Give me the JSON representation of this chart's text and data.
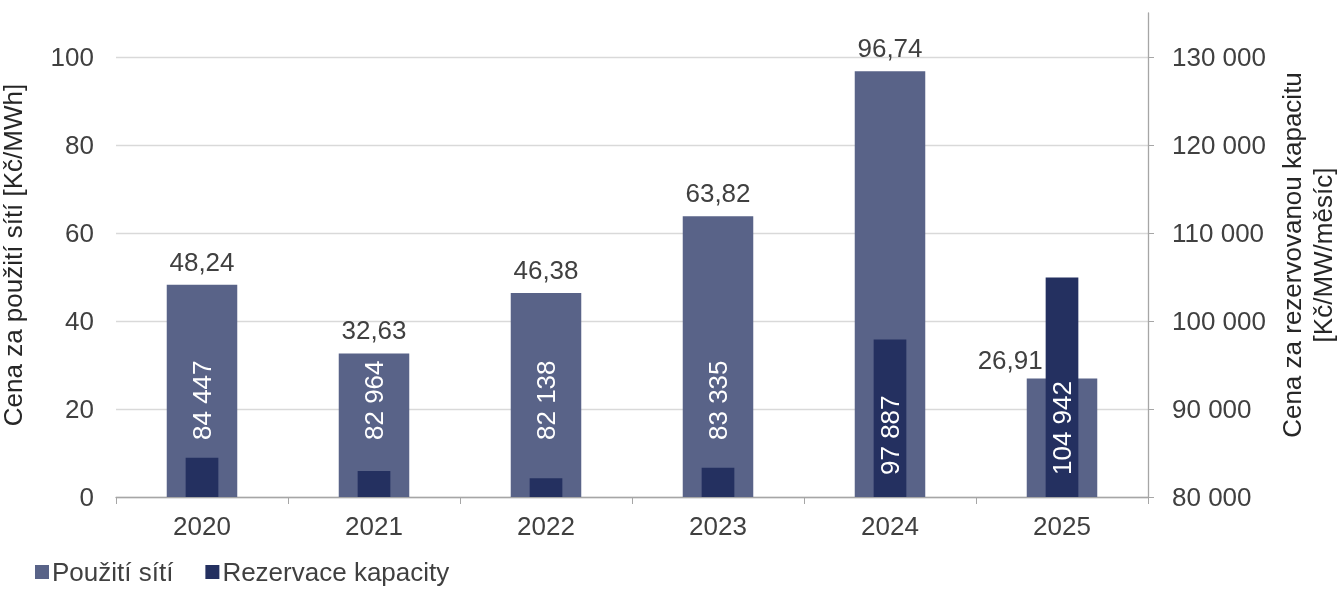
{
  "chart_data": {
    "type": "bar",
    "categories": [
      "2020",
      "2021",
      "2022",
      "2023",
      "2024",
      "2025"
    ],
    "ylabel": "Cena za použití sítí [Kč/MWh]",
    "y2label": "Cena za rezervovanou kapacitu [Kč/MW/měsíc]",
    "ylim": [
      0,
      110
    ],
    "yticks": [
      0,
      20,
      40,
      60,
      80,
      100
    ],
    "y2lim": [
      80000,
      135000
    ],
    "y2ticks": [
      {
        "value": 80000,
        "label": "80 000"
      },
      {
        "value": 90000,
        "label": "90 000"
      },
      {
        "value": 100000,
        "label": "100 000"
      },
      {
        "value": 110000,
        "label": "110 000"
      },
      {
        "value": 120000,
        "label": "120 000"
      },
      {
        "value": 130000,
        "label": "130 000"
      }
    ],
    "series": [
      {
        "name": "Použití sítí",
        "color": "#596388",
        "values": [
          48.24,
          32.63,
          46.38,
          63.82,
          96.74,
          26.91
        ],
        "value_labels": [
          "48,24",
          "32,63",
          "46,38",
          "63,82",
          "96,74",
          "26,91"
        ]
      },
      {
        "name": "Rezervace kapacity",
        "color": "#243060",
        "axis": "y2",
        "values": [
          84447,
          82964,
          82138,
          83335,
          97887,
          104942
        ],
        "value_labels": [
          "84 447",
          "82 964",
          "82 138",
          "83 335",
          "97 887",
          "104 942"
        ]
      }
    ],
    "grid": "y",
    "legend": "bottom left"
  }
}
